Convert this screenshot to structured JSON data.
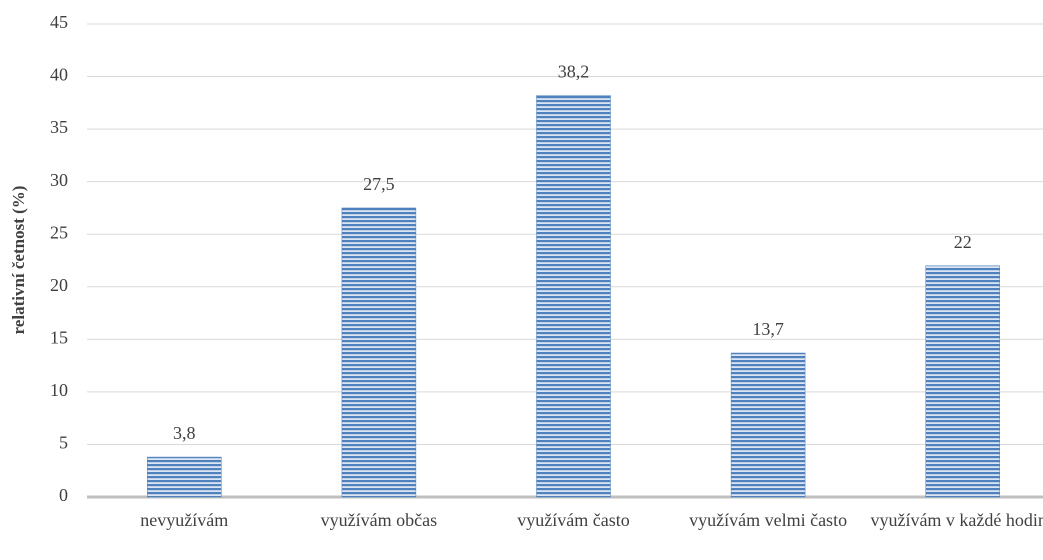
{
  "chart_data": {
    "type": "bar",
    "y_label": "relativní četnost (%)",
    "categories": [
      "nevyužívám",
      "využívám občas",
      "využívám často",
      "využívám velmi často",
      "využívám v každé hodině"
    ],
    "values": [
      3.8,
      27.5,
      38.2,
      13.7,
      22
    ],
    "value_labels": [
      "3,8",
      "27,5",
      "38,2",
      "13,7",
      "22"
    ],
    "color": "#4f81bd",
    "ylim": [
      0,
      45
    ],
    "yticks": [
      0,
      5,
      10,
      15,
      20,
      25,
      30,
      35,
      40,
      45
    ],
    "grid": true
  }
}
